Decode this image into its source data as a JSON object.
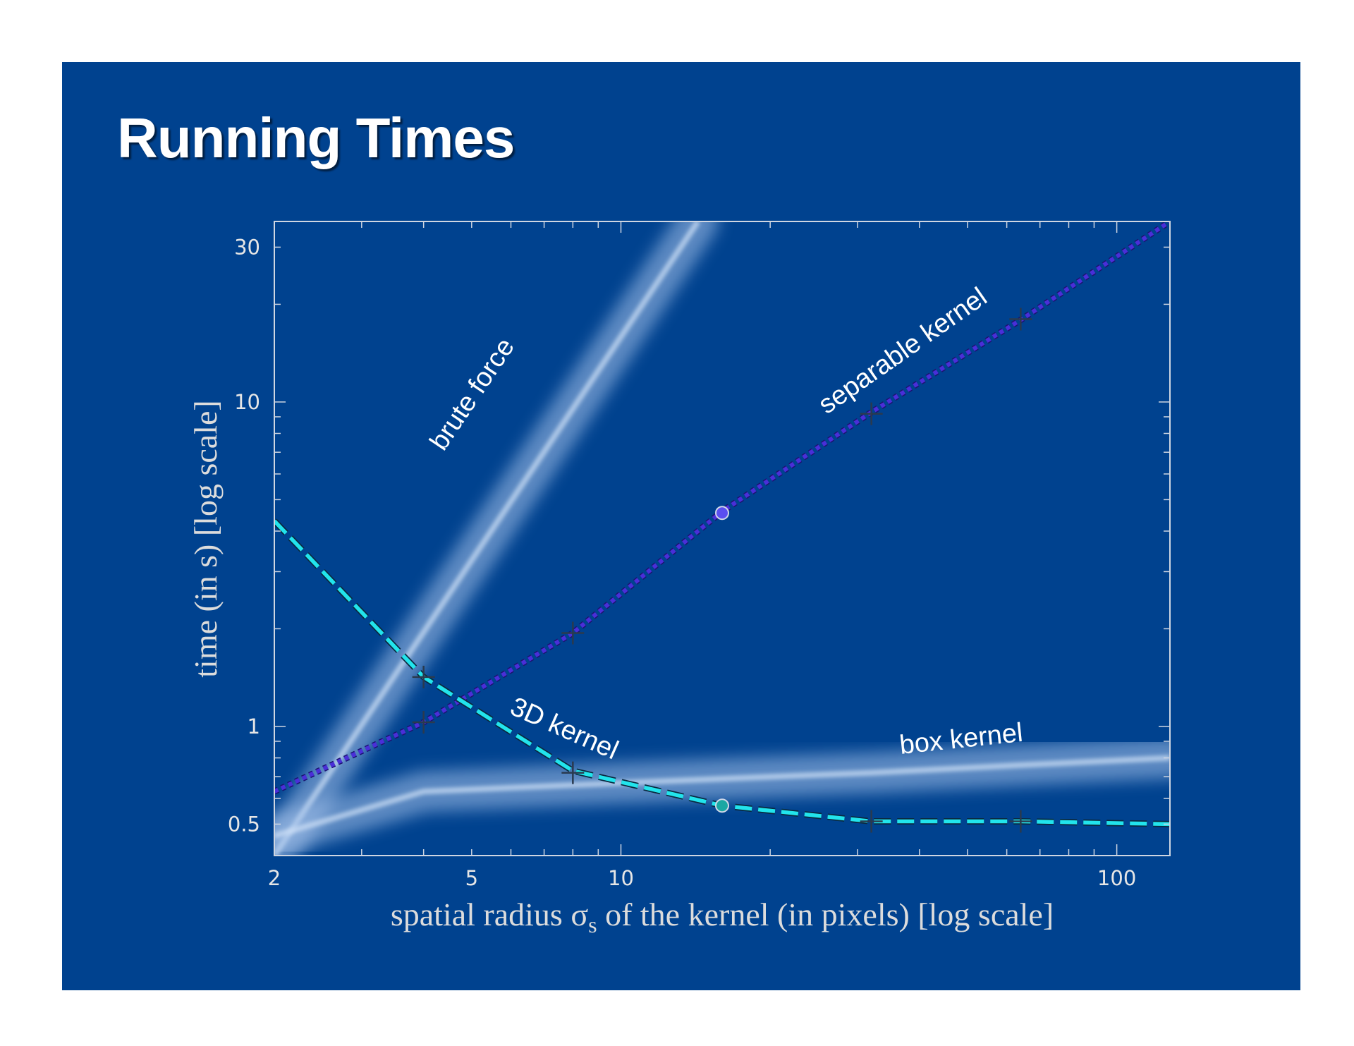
{
  "slide": {
    "title": "Running Times",
    "background": "#00428f"
  },
  "chart_data": {
    "type": "line",
    "title": "Running Times",
    "xlabel": "spatial radius σs of the kernel (in pixels) [log scale]",
    "xlabel_main": "spatial radius σ",
    "xlabel_sub": "s",
    "xlabel_rest": " of the kernel (in pixels) [log scale]",
    "ylabel": "time (in s) [log scale]",
    "x_scale": "log",
    "y_scale": "log",
    "xlim": [
      2,
      128
    ],
    "ylim": [
      0.4,
      36
    ],
    "x_ticks": [
      {
        "value": 2,
        "label": "2"
      },
      {
        "value": 5,
        "label": "5"
      },
      {
        "value": 10,
        "label": "10"
      },
      {
        "value": 100,
        "label": "100"
      }
    ],
    "y_ticks": [
      {
        "value": 0.5,
        "label": "0.5"
      },
      {
        "value": 1,
        "label": "1"
      },
      {
        "value": 10,
        "label": "10"
      },
      {
        "value": 30,
        "label": "30"
      }
    ],
    "grid": false,
    "series": [
      {
        "name": "brute force",
        "style": "glow-band",
        "color": "#a8c4ec",
        "x": [
          2,
          14.3
        ],
        "y": [
          0.4,
          36
        ]
      },
      {
        "name": "box kernel",
        "style": "glow-band",
        "color": "#a8c4ec",
        "x": [
          2,
          4,
          8,
          16,
          32,
          64,
          128
        ],
        "y": [
          0.46,
          0.63,
          0.66,
          0.69,
          0.72,
          0.76,
          0.8
        ]
      },
      {
        "name": "separable kernel",
        "style": "dotted",
        "color": "#4a2fd8",
        "x": [
          2,
          4,
          8,
          16,
          32,
          64,
          128
        ],
        "y": [
          0.63,
          1.03,
          1.94,
          4.6,
          9.3,
          17.9,
          36
        ],
        "markers": [
          {
            "x": 4,
            "y": 1.03,
            "shape": "cross"
          },
          {
            "x": 8,
            "y": 1.94,
            "shape": "cross"
          },
          {
            "x": 16,
            "y": 4.55,
            "shape": "circle"
          },
          {
            "x": 32,
            "y": 9.2,
            "shape": "cross"
          },
          {
            "x": 64,
            "y": 18,
            "shape": "cross"
          }
        ]
      },
      {
        "name": "3D kernel",
        "style": "dashed",
        "color": "#22e4ec",
        "x": [
          2,
          4,
          8,
          16,
          32,
          64,
          128
        ],
        "y": [
          4.3,
          1.42,
          0.73,
          0.57,
          0.51,
          0.51,
          0.5
        ],
        "markers": [
          {
            "x": 4,
            "y": 1.42,
            "shape": "cross"
          },
          {
            "x": 8,
            "y": 0.72,
            "shape": "cross"
          },
          {
            "x": 16,
            "y": 0.57,
            "shape": "circle"
          },
          {
            "x": 32,
            "y": 0.51,
            "shape": "cross"
          },
          {
            "x": 64,
            "y": 0.51,
            "shape": "cross"
          }
        ]
      }
    ],
    "annotations": [
      {
        "text": "brute force",
        "series": "brute force"
      },
      {
        "text": "separable kernel",
        "series": "separable kernel"
      },
      {
        "text": "3D kernel",
        "series": "3D kernel"
      },
      {
        "text": "box kernel",
        "series": "box kernel"
      }
    ]
  }
}
